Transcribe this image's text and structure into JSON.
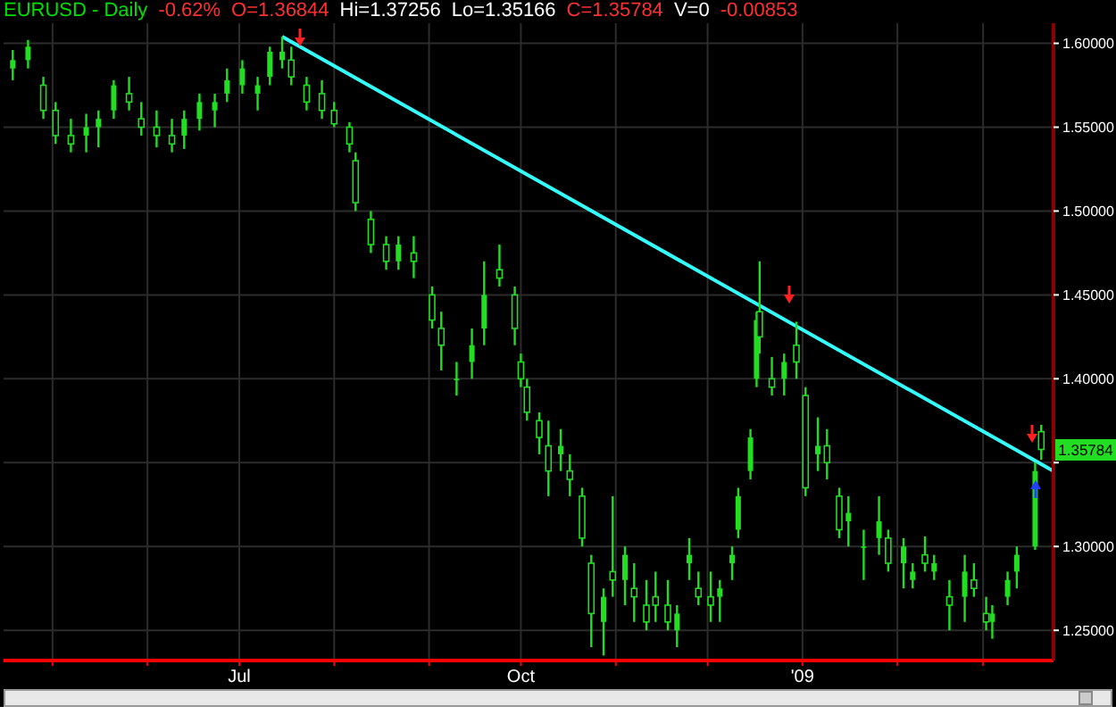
{
  "chart_data": {
    "type": "candlestick",
    "title": "EURUSD - Daily",
    "annotations": [
      "-0.62%",
      "O=1.36844",
      "Hi=1.37256",
      "Lo=1.35166",
      "C=1.35784",
      "V=0",
      "-0.00853",
      "1.35784"
    ],
    "xlim": [
      "2008-04-15",
      "2009-03-24"
    ],
    "xticks": [
      {
        "value": "2008-05-01",
        "label": null
      },
      {
        "value": "2008-06-01",
        "label": null
      },
      {
        "value": "2008-07-01",
        "label": "Jul"
      },
      {
        "value": "2008-08-01",
        "label": null
      },
      {
        "value": "2008-09-01",
        "label": null
      },
      {
        "value": "2008-10-01",
        "label": "Oct"
      },
      {
        "value": "2008-11-01",
        "label": null
      },
      {
        "value": "2008-12-01",
        "label": null
      },
      {
        "value": "2009-01-01",
        "label": "'09"
      },
      {
        "value": "2009-02-01",
        "label": null
      },
      {
        "value": "2009-03-01",
        "label": null
      }
    ],
    "ylim": [
      1.232,
      1.612
    ],
    "yticks": [
      {
        "value": 1.25,
        "label": "1.25000"
      },
      {
        "value": 1.3,
        "label": "1.30000"
      },
      {
        "value": 1.35,
        "label": null
      },
      {
        "value": 1.4,
        "label": "1.40000"
      },
      {
        "value": 1.45,
        "label": "1.45000"
      },
      {
        "value": 1.5,
        "label": "1.50000"
      },
      {
        "value": 1.55,
        "label": "1.55000"
      },
      {
        "value": 1.6,
        "label": "1.60000"
      }
    ],
    "grid": true,
    "series": [
      {
        "color": "#22dd22",
        "x": [
          "2008-04-18",
          "2008-04-23",
          "2008-04-28",
          "2008-05-02",
          "2008-05-07",
          "2008-05-12",
          "2008-05-16",
          "2008-05-21",
          "2008-05-26",
          "2008-05-30",
          "2008-06-04",
          "2008-06-09",
          "2008-06-13",
          "2008-06-18",
          "2008-06-23",
          "2008-06-27",
          "2008-07-02",
          "2008-07-07",
          "2008-07-11",
          "2008-07-15",
          "2008-07-18",
          "2008-07-23",
          "2008-07-28",
          "2008-08-01",
          "2008-08-06",
          "2008-08-08",
          "2008-08-13",
          "2008-08-18",
          "2008-08-22",
          "2008-08-27",
          "2008-09-02",
          "2008-09-05",
          "2008-09-10",
          "2008-09-15",
          "2008-09-19",
          "2008-09-24",
          "2008-09-29",
          "2008-10-01",
          "2008-10-03",
          "2008-10-07",
          "2008-10-10",
          "2008-10-14",
          "2008-10-17",
          "2008-10-21",
          "2008-10-24",
          "2008-10-28",
          "2008-10-31",
          "2008-11-04",
          "2008-11-07",
          "2008-11-11",
          "2008-11-14",
          "2008-11-18",
          "2008-11-21",
          "2008-11-25",
          "2008-11-28",
          "2008-12-02",
          "2008-12-05",
          "2008-12-09",
          "2008-12-11",
          "2008-12-15",
          "2008-12-17",
          "2008-12-18",
          "2008-12-22",
          "2008-12-26",
          "2008-12-30",
          "2009-01-02",
          "2009-01-06",
          "2009-01-09",
          "2009-01-13",
          "2009-01-16",
          "2009-01-21",
          "2009-01-26",
          "2009-01-29",
          "2009-02-03",
          "2009-02-06",
          "2009-02-10",
          "2009-02-13",
          "2009-02-18",
          "2009-02-23",
          "2009-02-26",
          "2009-03-02",
          "2009-03-04",
          "2009-03-09",
          "2009-03-12",
          "2009-03-18",
          "2009-03-20"
        ],
        "ohlc": [
          [
            1.585,
            1.596,
            1.578,
            1.59
          ],
          [
            1.59,
            1.602,
            1.585,
            1.598
          ],
          [
            1.575,
            1.58,
            1.555,
            1.56
          ],
          [
            1.56,
            1.565,
            1.54,
            1.545
          ],
          [
            1.545,
            1.555,
            1.535,
            1.54
          ],
          [
            1.545,
            1.558,
            1.535,
            1.55
          ],
          [
            1.55,
            1.56,
            1.538,
            1.555
          ],
          [
            1.56,
            1.578,
            1.555,
            1.575
          ],
          [
            1.57,
            1.58,
            1.56,
            1.565
          ],
          [
            1.555,
            1.565,
            1.545,
            1.55
          ],
          [
            1.55,
            1.56,
            1.538,
            1.545
          ],
          [
            1.545,
            1.555,
            1.535,
            1.54
          ],
          [
            1.545,
            1.56,
            1.537,
            1.555
          ],
          [
            1.555,
            1.57,
            1.548,
            1.565
          ],
          [
            1.56,
            1.57,
            1.55,
            1.565
          ],
          [
            1.57,
            1.585,
            1.565,
            1.578
          ],
          [
            1.575,
            1.59,
            1.57,
            1.585
          ],
          [
            1.57,
            1.58,
            1.56,
            1.575
          ],
          [
            1.58,
            1.598,
            1.575,
            1.595
          ],
          [
            1.59,
            1.604,
            1.585,
            1.595
          ],
          [
            1.59,
            1.598,
            1.575,
            1.58
          ],
          [
            1.575,
            1.58,
            1.56,
            1.565
          ],
          [
            1.57,
            1.578,
            1.555,
            1.56
          ],
          [
            1.56,
            1.565,
            1.55,
            1.552
          ],
          [
            1.55,
            1.553,
            1.535,
            1.54
          ],
          [
            1.53,
            1.535,
            1.5,
            1.505
          ],
          [
            1.495,
            1.5,
            1.475,
            1.48
          ],
          [
            1.48,
            1.485,
            1.465,
            1.47
          ],
          [
            1.47,
            1.485,
            1.465,
            1.48
          ],
          [
            1.475,
            1.485,
            1.46,
            1.47
          ],
          [
            1.45,
            1.455,
            1.43,
            1.435
          ],
          [
            1.43,
            1.44,
            1.405,
            1.42
          ],
          [
            1.4,
            1.41,
            1.39,
            1.4
          ],
          [
            1.41,
            1.43,
            1.4,
            1.42
          ],
          [
            1.43,
            1.47,
            1.42,
            1.45
          ],
          [
            1.465,
            1.48,
            1.455,
            1.46
          ],
          [
            1.45,
            1.455,
            1.42,
            1.43
          ],
          [
            1.41,
            1.415,
            1.395,
            1.4
          ],
          [
            1.395,
            1.4,
            1.375,
            1.38
          ],
          [
            1.375,
            1.38,
            1.355,
            1.365
          ],
          [
            1.36,
            1.375,
            1.33,
            1.345
          ],
          [
            1.355,
            1.37,
            1.345,
            1.36
          ],
          [
            1.345,
            1.355,
            1.33,
            1.34
          ],
          [
            1.33,
            1.335,
            1.3,
            1.305
          ],
          [
            1.29,
            1.295,
            1.24,
            1.26
          ],
          [
            1.255,
            1.275,
            1.235,
            1.27
          ],
          [
            1.285,
            1.33,
            1.27,
            1.28
          ],
          [
            1.28,
            1.3,
            1.265,
            1.295
          ],
          [
            1.275,
            1.29,
            1.255,
            1.27
          ],
          [
            1.265,
            1.28,
            1.25,
            1.255
          ],
          [
            1.27,
            1.285,
            1.255,
            1.265
          ],
          [
            1.265,
            1.28,
            1.25,
            1.255
          ],
          [
            1.25,
            1.265,
            1.24,
            1.26
          ],
          [
            1.29,
            1.305,
            1.28,
            1.295
          ],
          [
            1.275,
            1.285,
            1.265,
            1.27
          ],
          [
            1.27,
            1.285,
            1.255,
            1.265
          ],
          [
            1.27,
            1.28,
            1.255,
            1.275
          ],
          [
            1.29,
            1.3,
            1.28,
            1.295
          ],
          [
            1.31,
            1.335,
            1.305,
            1.33
          ],
          [
            1.345,
            1.37,
            1.34,
            1.365
          ],
          [
            1.4,
            1.44,
            1.395,
            1.435
          ],
          [
            1.44,
            1.47,
            1.415,
            1.425
          ],
          [
            1.4,
            1.413,
            1.39,
            1.395
          ],
          [
            1.4,
            1.415,
            1.39,
            1.41
          ],
          [
            1.42,
            1.434,
            1.4,
            1.41
          ],
          [
            1.39,
            1.395,
            1.33,
            1.335
          ],
          [
            1.355,
            1.377,
            1.345,
            1.36
          ],
          [
            1.36,
            1.37,
            1.34,
            1.35
          ],
          [
            1.33,
            1.335,
            1.305,
            1.31
          ],
          [
            1.315,
            1.33,
            1.3,
            1.32
          ],
          [
            1.3,
            1.31,
            1.28,
            1.3
          ],
          [
            1.305,
            1.33,
            1.295,
            1.315
          ],
          [
            1.305,
            1.31,
            1.285,
            1.29
          ],
          [
            1.29,
            1.305,
            1.275,
            1.3
          ],
          [
            1.28,
            1.29,
            1.275,
            1.285
          ],
          [
            1.295,
            1.306,
            1.285,
            1.29
          ],
          [
            1.285,
            1.295,
            1.28,
            1.29
          ],
          [
            1.27,
            1.28,
            1.25,
            1.265
          ],
          [
            1.27,
            1.295,
            1.255,
            1.285
          ],
          [
            1.28,
            1.29,
            1.27,
            1.275
          ],
          [
            1.26,
            1.27,
            1.25,
            1.255
          ],
          [
            1.255,
            1.265,
            1.245,
            1.26
          ],
          [
            1.27,
            1.285,
            1.265,
            1.28
          ],
          [
            1.285,
            1.3,
            1.275,
            1.295
          ],
          [
            1.3,
            1.35,
            1.298,
            1.345
          ],
          [
            1.36844,
            1.37256,
            1.35166,
            1.35784
          ]
        ]
      },
      {
        "type": "line",
        "color": "#33ffff",
        "x": [
          "2008-07-15",
          "2009-03-24"
        ],
        "values": [
          1.604,
          1.345
        ]
      }
    ]
  }
}
